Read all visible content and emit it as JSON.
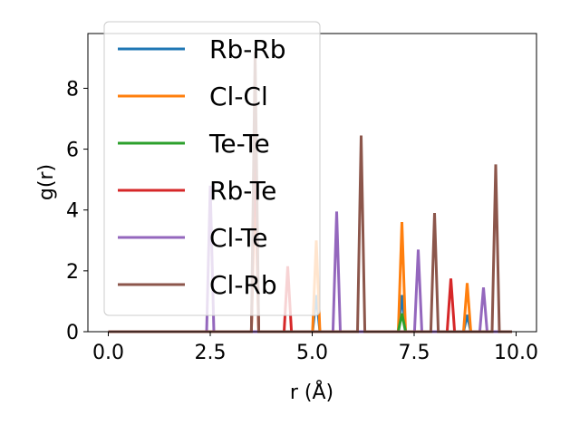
{
  "chart_data": {
    "type": "line",
    "title": "",
    "xlabel": "r (Å)",
    "ylabel": "g(r)",
    "xlim": [
      -0.5,
      10.5
    ],
    "ylim": [
      0,
      9.8
    ],
    "xticks": [
      0.0,
      2.5,
      5.0,
      7.5,
      10.0
    ],
    "xtick_labels": [
      "0.0",
      "2.5",
      "5.0",
      "7.5",
      "10.0"
    ],
    "yticks": [
      0,
      2,
      4,
      6,
      8
    ],
    "ytick_labels": [
      "0",
      "2",
      "4",
      "6",
      "8"
    ],
    "grid": false,
    "legend_position": "top-left",
    "x_range": [
      0.0,
      9.9
    ],
    "series": [
      {
        "name": "Rb-Rb",
        "color": "#1f77b4",
        "peaks": [
          [
            5.1,
            1.2
          ],
          [
            7.2,
            1.2
          ],
          [
            8.8,
            0.55
          ]
        ]
      },
      {
        "name": "Cl-Cl",
        "color": "#ff7f0e",
        "peaks": [
          [
            3.6,
            5.2
          ],
          [
            5.1,
            3.0
          ],
          [
            7.2,
            3.6
          ],
          [
            8.8,
            1.6
          ]
        ]
      },
      {
        "name": "Te-Te",
        "color": "#2ca02c",
        "peaks": [
          [
            7.2,
            0.6
          ]
        ]
      },
      {
        "name": "Rb-Te",
        "color": "#d62728",
        "peaks": [
          [
            3.6,
            6.3
          ],
          [
            4.4,
            2.15
          ],
          [
            8.4,
            1.75
          ]
        ]
      },
      {
        "name": "Cl-Te",
        "color": "#9467bd",
        "peaks": [
          [
            2.5,
            4.8
          ],
          [
            5.6,
            3.95
          ],
          [
            7.6,
            2.7
          ],
          [
            9.2,
            1.45
          ]
        ]
      },
      {
        "name": "Cl-Rb",
        "color": "#8c564b",
        "peaks": [
          [
            3.6,
            9.2
          ],
          [
            6.2,
            6.45
          ],
          [
            8.0,
            3.9
          ],
          [
            9.5,
            5.5
          ]
        ]
      }
    ]
  }
}
